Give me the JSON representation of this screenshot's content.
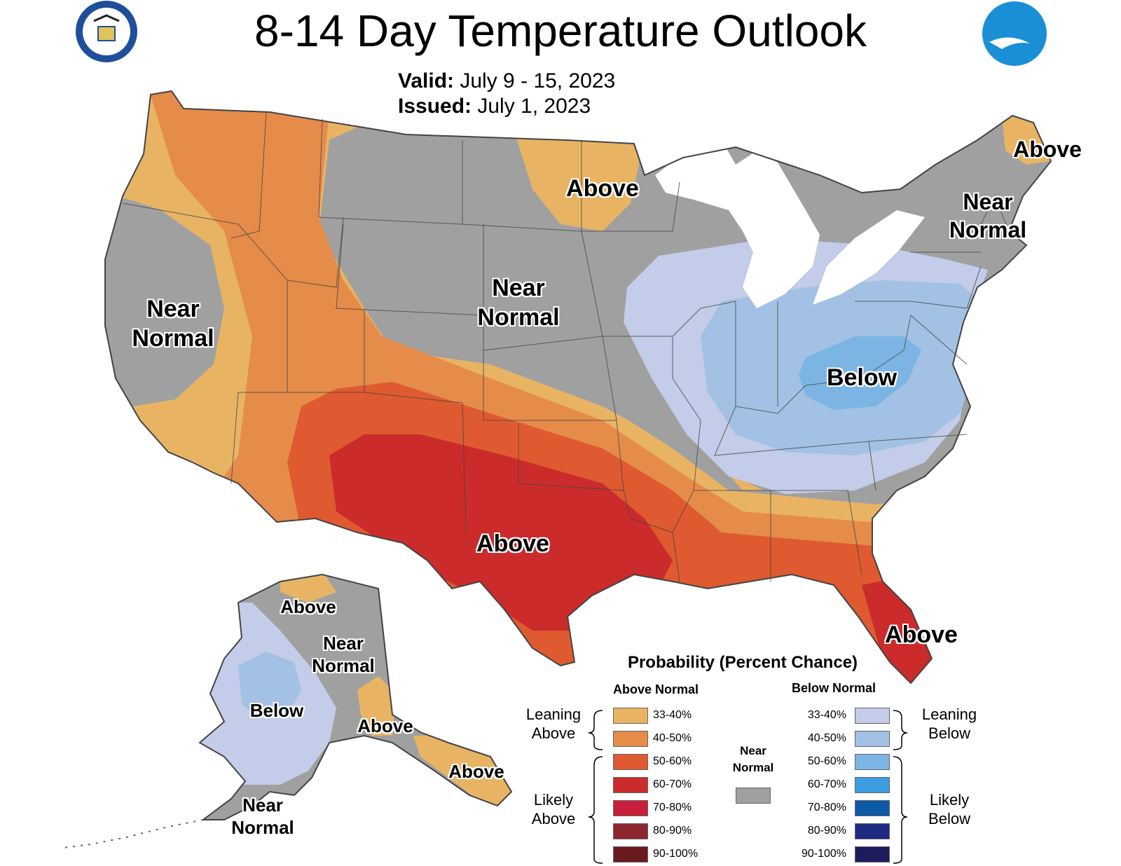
{
  "header": {
    "title": "8-14 Day Temperature Outlook",
    "valid_label": "Valid:",
    "valid_value": "July 9 - 15, 2023",
    "issued_label": "Issued:",
    "issued_value": "July 1, 2023",
    "left_logo_text": "DEPARTMENT OF COMMERCE · UNITED STATES OF AMERICA",
    "right_logo_text": "NOAA",
    "left_logo_icon": "commerce-seal-icon",
    "right_logo_icon": "noaa-logo-icon"
  },
  "map_labels": {
    "west_coast": "Near Normal",
    "northern_plains": "Near Normal",
    "northern_mn": "Above",
    "maine": "Above",
    "northeast": "Near Normal",
    "ohio_valley": "Below",
    "south_central": "Above",
    "florida": "Above",
    "ak_north": "Above",
    "ak_central": "Near Normal",
    "ak_west": "Below",
    "ak_east": "Above",
    "ak_south": "Above",
    "ak_aleutians": "Near Normal"
  },
  "legend": {
    "title": "Probability (Percent Chance)",
    "above_header": "Above Normal",
    "below_header": "Below Normal",
    "near_normal_label": "Near Normal",
    "leaning_above": "Leaning Above",
    "likely_above": "Likely Above",
    "leaning_below": "Leaning Below",
    "likely_below": "Likely Below",
    "above": [
      {
        "range": "33-40%",
        "color": "#e8b464"
      },
      {
        "range": "40-50%",
        "color": "#e58c4a"
      },
      {
        "range": "50-60%",
        "color": "#df5a30"
      },
      {
        "range": "60-70%",
        "color": "#cb2b2b"
      },
      {
        "range": "70-80%",
        "color": "#c8203c"
      },
      {
        "range": "80-90%",
        "color": "#8e2630"
      },
      {
        "range": "90-100%",
        "color": "#6a1a1e"
      }
    ],
    "below": [
      {
        "range": "33-40%",
        "color": "#c3cce8"
      },
      {
        "range": "40-50%",
        "color": "#a3c1e4"
      },
      {
        "range": "50-60%",
        "color": "#7cb5e4"
      },
      {
        "range": "60-70%",
        "color": "#3b9ce0"
      },
      {
        "range": "70-80%",
        "color": "#0d5aa6"
      },
      {
        "range": "80-90%",
        "color": "#1f2a80"
      },
      {
        "range": "90-100%",
        "color": "#1e1c5c"
      }
    ],
    "near_normal_color": "#a0a0a0"
  }
}
